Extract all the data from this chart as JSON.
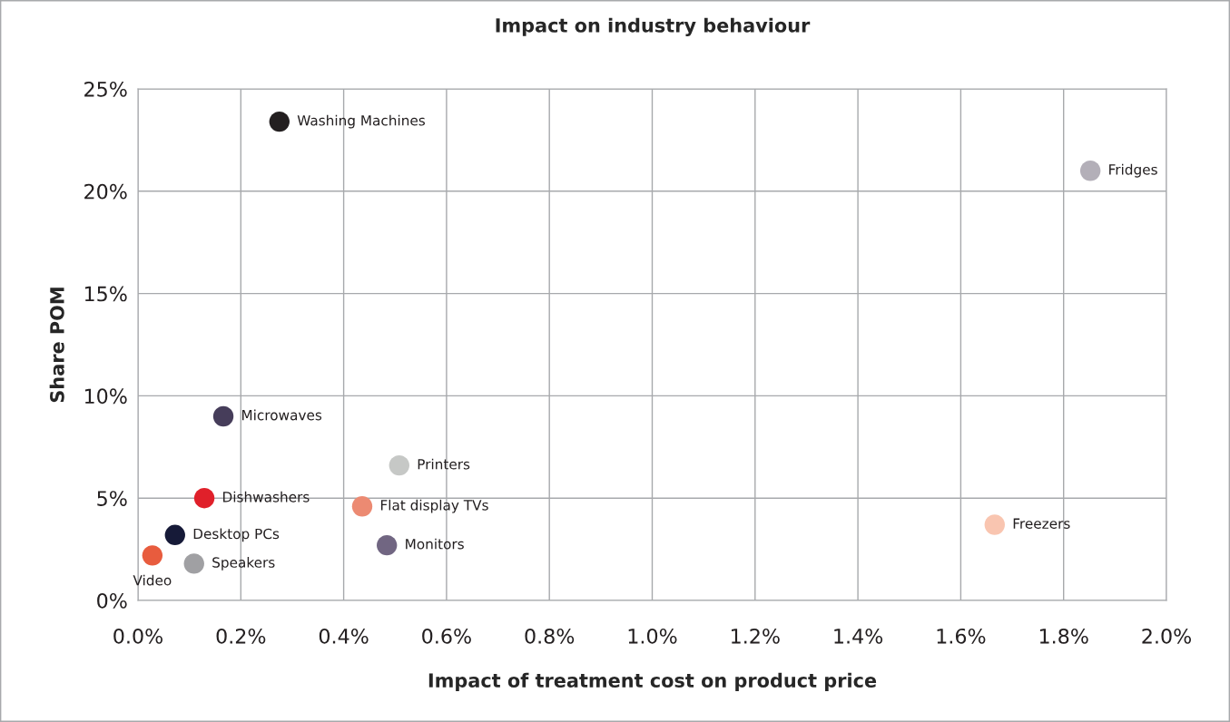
{
  "chart_data": {
    "type": "scatter",
    "title": "Impact on industry behaviour",
    "xlabel": "Impact of treatment cost on product price",
    "ylabel": "Share POM",
    "x": [
      0.275,
      1.852,
      0.166,
      0.508,
      0.129,
      0.436,
      1.666,
      0.072,
      0.484,
      0.028,
      0.109
    ],
    "values": [
      23.4,
      21.0,
      9.0,
      6.6,
      5.0,
      4.6,
      3.7,
      3.2,
      2.7,
      2.2,
      1.8
    ],
    "colors": [
      "#231f20",
      "#b3afb8",
      "#463d5a",
      "#c6c8c6",
      "#e0202a",
      "#ec8a72",
      "#f9c5b0",
      "#161a38",
      "#716682",
      "#e85c3e",
      "#a0a0a3"
    ],
    "annotations": [
      {
        "text": "Washing Machines",
        "x": 0.275,
        "y": 23.4
      },
      {
        "text": "Fridges",
        "x": 1.852,
        "y": 21.0
      },
      {
        "text": "Microwaves",
        "x": 0.166,
        "y": 9.0
      },
      {
        "text": "Printers",
        "x": 0.508,
        "y": 6.6
      },
      {
        "text": "Dishwashers",
        "x": 0.129,
        "y": 5.0
      },
      {
        "text": "Flat display TVs",
        "x": 0.436,
        "y": 4.6
      },
      {
        "text": "Freezers",
        "x": 1.666,
        "y": 3.7
      },
      {
        "text": "Desktop PCs",
        "x": 0.072,
        "y": 3.2
      },
      {
        "text": "Monitors",
        "x": 0.484,
        "y": 2.7
      },
      {
        "text": "Video",
        "x": 0.028,
        "y": 2.2
      },
      {
        "text": "Speakers",
        "x": 0.109,
        "y": 1.8
      }
    ],
    "xlim": [
      0,
      2.0
    ],
    "ylim": [
      0,
      25
    ],
    "xticks": [
      {
        "value": 0,
        "label": "0.0%"
      },
      {
        "value": 0.2,
        "label": "0.2%"
      },
      {
        "value": 0.4,
        "label": "0.4%"
      },
      {
        "value": 0.6,
        "label": "0.6%"
      },
      {
        "value": 0.8,
        "label": "0.8%"
      },
      {
        "value": 1.0,
        "label": "1.0%"
      },
      {
        "value": 1.2,
        "label": "1.2%"
      },
      {
        "value": 1.4,
        "label": "1.4%"
      },
      {
        "value": 1.6,
        "label": "1.6%"
      },
      {
        "value": 1.8,
        "label": "1.8%"
      },
      {
        "value": 2.0,
        "label": "2.0%"
      }
    ],
    "yticks": [
      {
        "value": 0,
        "label": "0%"
      },
      {
        "value": 5,
        "label": "5%"
      },
      {
        "value": 10,
        "label": "10%"
      },
      {
        "value": 15,
        "label": "15%"
      },
      {
        "value": 20,
        "label": "20%"
      },
      {
        "value": 25,
        "label": "25%"
      }
    ],
    "grid": true,
    "marker": "circle"
  }
}
